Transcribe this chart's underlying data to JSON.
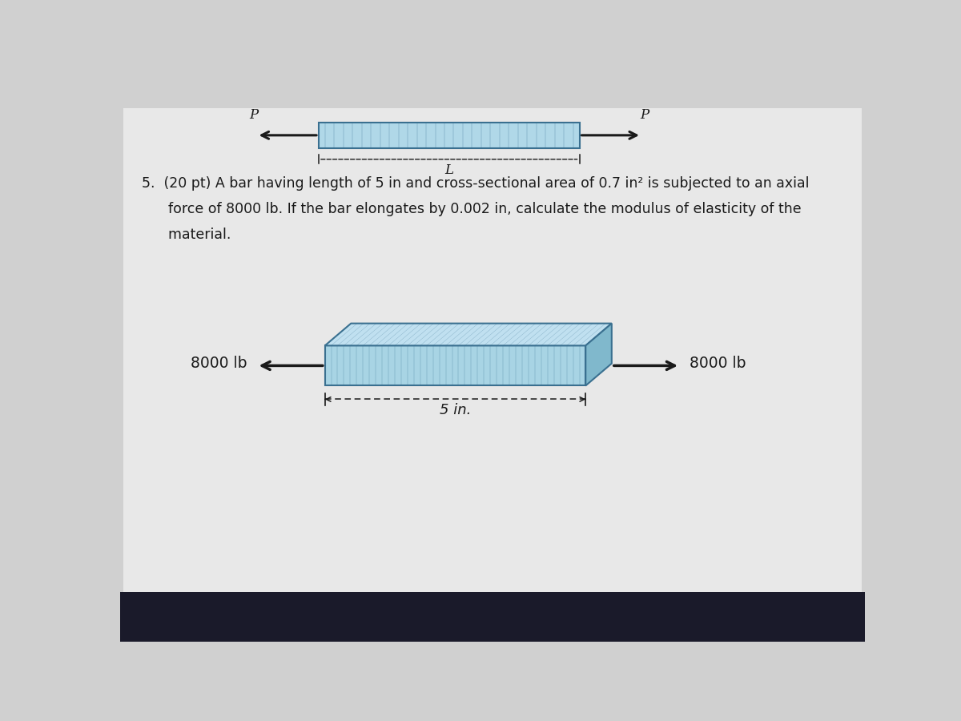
{
  "bg_color": "#d0d0d0",
  "screen_bg": "#e8e8e8",
  "bar_face_color": "#a8d4e4",
  "bar_edge_color": "#3a7090",
  "bar_top_color": "#c0e0f0",
  "bar_side_color": "#80b8cc",
  "top_bar_face_color": "#b0d8e8",
  "top_bar_edge_color": "#3a7090",
  "arrow_color": "#1a1a1a",
  "text_color": "#1a1a1a",
  "force_label": "8000 lb",
  "length_label": "5 in.",
  "top_label_left": "P",
  "top_label_right": "P",
  "top_length_label": "L",
  "line1": "5.  (20 pt) A bar having length of 5 in and cross-sectional area of 0.7 in² is subjected to an axial",
  "line2": "      force of 8000 lb. If the bar elongates by 0.002 in, calculate the modulus of elasticity of the",
  "line3": "      material."
}
